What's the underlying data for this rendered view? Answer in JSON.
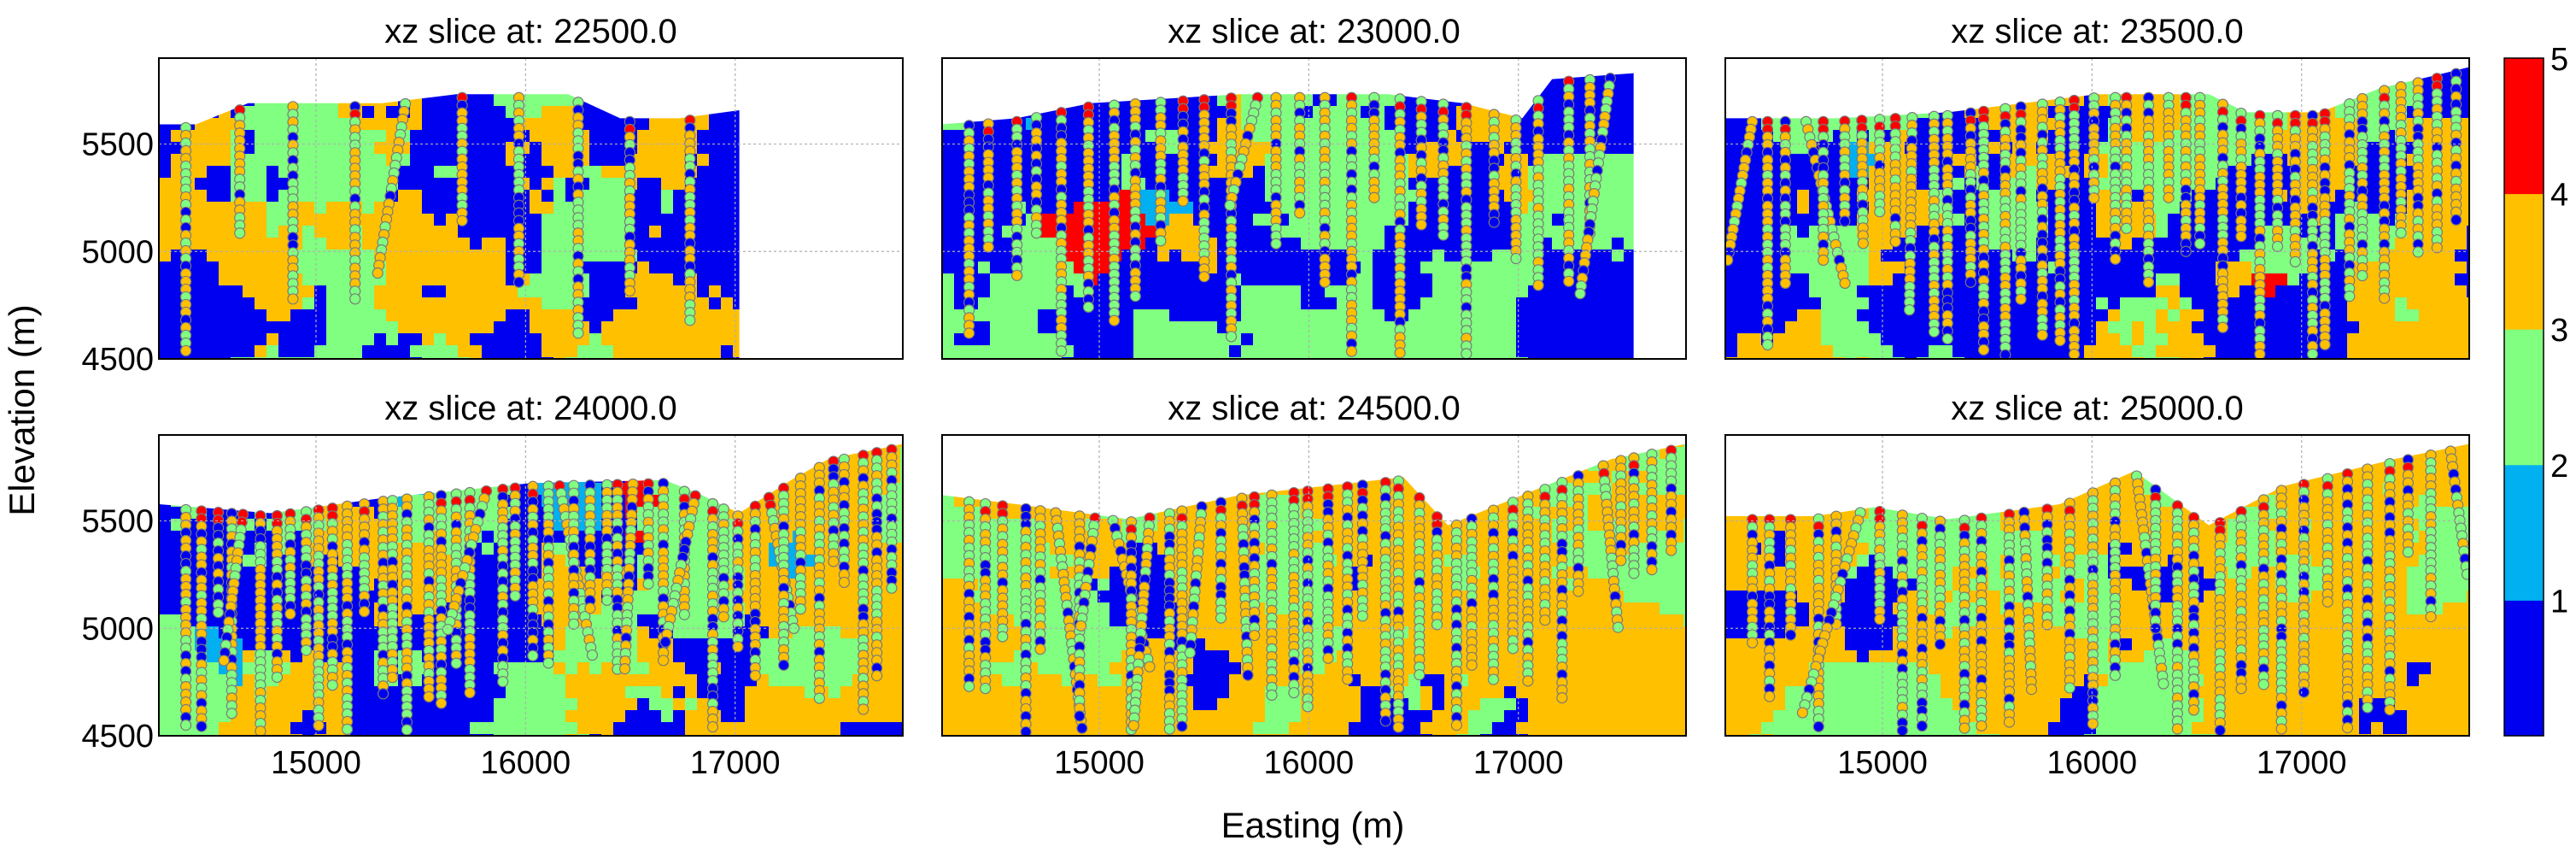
{
  "figure": {
    "xlabel": "Easting (m)",
    "ylabel": "Elevation (m)"
  },
  "colorbar": {
    "ticks": [
      "1",
      "2",
      "3",
      "4",
      "5"
    ],
    "colors": [
      "#0000f0",
      "#00b0f0",
      "#80ff80",
      "#ffc000",
      "#ff0000"
    ]
  },
  "chart_data": [
    {
      "type": "heatmap",
      "title": "xz slice at: 22500.0",
      "xlim": [
        14250,
        17800
      ],
      "ylim": [
        4500,
        5900
      ],
      "xticks": [
        "15000",
        "16000",
        "17000"
      ],
      "yticks": [
        "4500",
        "5000",
        "5500"
      ],
      "xticklabels_shown": false,
      "yticklabels_shown": true,
      "data_extent_x": [
        14250,
        17020
      ],
      "grid": true
    },
    {
      "type": "heatmap",
      "title": "xz slice at: 23000.0",
      "xlim": [
        14250,
        17800
      ],
      "ylim": [
        4500,
        5900
      ],
      "xticks": [
        "15000",
        "16000",
        "17000"
      ],
      "yticks": [
        "4500",
        "5000",
        "5500"
      ],
      "xticklabels_shown": false,
      "yticklabels_shown": false,
      "data_extent_x": [
        14250,
        17550
      ],
      "grid": true
    },
    {
      "type": "heatmap",
      "title": "xz slice at: 23500.0",
      "xlim": [
        14250,
        17800
      ],
      "ylim": [
        4500,
        5900
      ],
      "xticks": [
        "15000",
        "16000",
        "17000"
      ],
      "yticks": [
        "4500",
        "5000",
        "5500"
      ],
      "xticklabels_shown": false,
      "yticklabels_shown": false,
      "data_extent_x": [
        14250,
        17800
      ],
      "grid": true
    },
    {
      "type": "heatmap",
      "title": "xz slice at: 24000.0",
      "xlim": [
        14250,
        17800
      ],
      "ylim": [
        4500,
        5900
      ],
      "xticks": [
        "15000",
        "16000",
        "17000"
      ],
      "yticks": [
        "4500",
        "5000",
        "5500"
      ],
      "xticklabels_shown": true,
      "yticklabels_shown": true,
      "data_extent_x": [
        14250,
        17800
      ],
      "grid": true
    },
    {
      "type": "heatmap",
      "title": "xz slice at: 24500.0",
      "xlim": [
        14250,
        17800
      ],
      "ylim": [
        4500,
        5900
      ],
      "xticks": [
        "15000",
        "16000",
        "17000"
      ],
      "yticks": [
        "4500",
        "5000",
        "5500"
      ],
      "xticklabels_shown": true,
      "yticklabels_shown": false,
      "data_extent_x": [
        14250,
        17800
      ],
      "grid": true
    },
    {
      "type": "heatmap",
      "title": "xz slice at: 25000.0",
      "xlim": [
        14250,
        17800
      ],
      "ylim": [
        4500,
        5900
      ],
      "xticks": [
        "15000",
        "16000",
        "17000"
      ],
      "yticks": [
        "4500",
        "5000",
        "5500"
      ],
      "xticklabels_shown": true,
      "yticklabels_shown": false,
      "data_extent_x": [
        14250,
        17800
      ],
      "grid": true
    }
  ]
}
